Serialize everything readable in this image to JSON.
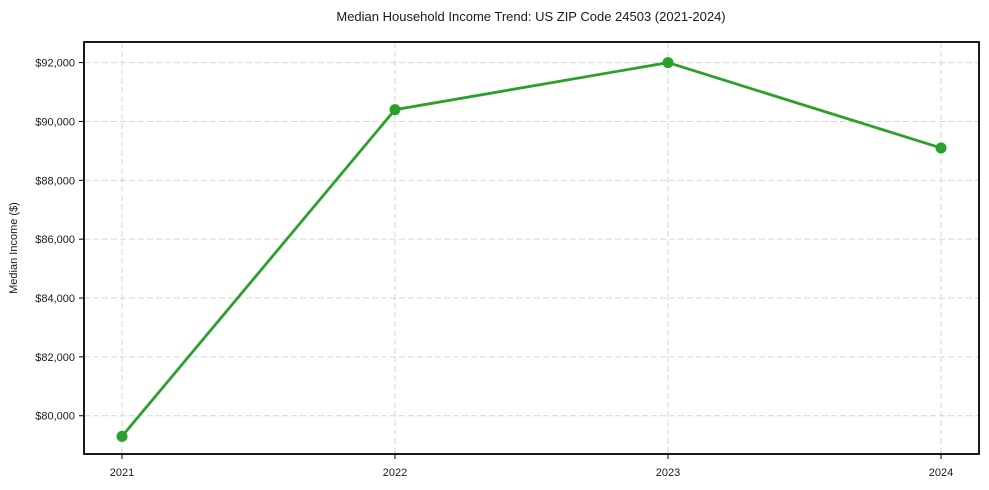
{
  "chart_data": {
    "type": "line",
    "title": "Median Household Income Trend: US ZIP Code 24503 (2021-2024)",
    "xlabel": "",
    "ylabel": "Median Income ($)",
    "categories": [
      "2021",
      "2022",
      "2023",
      "2024"
    ],
    "values": [
      79300,
      90400,
      92000,
      89100
    ],
    "series_name": "Median Household Income",
    "ylim": [
      78700,
      92700
    ],
    "y_ticks": {
      "values": [
        80000,
        82000,
        84000,
        86000,
        88000,
        90000,
        92000
      ],
      "labels": [
        "$80,000",
        "$82,000",
        "$84,000",
        "$86,000",
        "$88,000",
        "$90,000",
        "$92,000"
      ]
    },
    "grid": true,
    "grid_style": "dashed",
    "legend": "none",
    "marker": "circle",
    "colors": {
      "line": "#2ca02c",
      "marker": "#2ca02c",
      "grid": "#d6d6d6",
      "spine": "#000000",
      "text": "#1a1a1a",
      "background": "#ffffff"
    }
  }
}
